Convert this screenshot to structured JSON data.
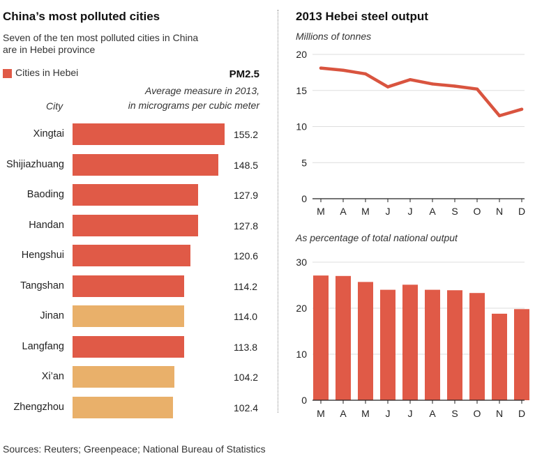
{
  "colors": {
    "hebei": "#e05a47",
    "other": "#e9b06a",
    "line": "#d9543f",
    "axis": "#222222",
    "grid": "#dddddd"
  },
  "left": {
    "title": "China’s most polluted cities",
    "subtitle_1": "Seven of the ten most polluted cities in China",
    "subtitle_2": "are in Hebei province",
    "legend_label": "Cities in Hebei",
    "metric_title": "PM2.5",
    "metric_desc_1": "Average measure in 2013,",
    "metric_desc_2": "in micrograms per cubic meter",
    "city_header": "City"
  },
  "right": {
    "title": "2013 Hebei steel output",
    "line_subtitle": "Millions of tonnes",
    "bar_subtitle": "As percentage of total national output"
  },
  "footer": {
    "sources": "Sources: Reuters; Greenpeace; National Bureau of Statistics"
  },
  "chart_data": [
    {
      "type": "bar",
      "orientation": "horizontal",
      "categories": [
        "Xingtai",
        "Shijiazhuang",
        "Baoding",
        "Handan",
        "Hengshui",
        "Tangshan",
        "Jinan",
        "Langfang",
        "Xi’an",
        "Zhengzhou"
      ],
      "values": [
        155.2,
        148.5,
        127.9,
        127.8,
        120.6,
        114.2,
        114.0,
        113.8,
        104.2,
        102.4
      ],
      "value_labels": [
        "155.2",
        "148.5",
        "127.9",
        "127.8",
        "120.6",
        "114.2",
        "114.0",
        "113.8",
        "104.2",
        "102.4"
      ],
      "in_hebei": [
        true,
        true,
        true,
        true,
        true,
        true,
        false,
        true,
        false,
        false
      ],
      "title": "China’s most polluted cities"
    },
    {
      "type": "line",
      "categories": [
        "M",
        "A",
        "M",
        "J",
        "J",
        "A",
        "S",
        "O",
        "N",
        "D"
      ],
      "values": [
        18.1,
        17.8,
        17.3,
        15.5,
        16.5,
        15.9,
        15.6,
        15.2,
        11.5,
        12.4
      ],
      "ylim": [
        0,
        20
      ],
      "yticks": [
        0,
        5,
        10,
        15,
        20
      ],
      "ylabel": "Millions of tonnes",
      "grid": true
    },
    {
      "type": "bar",
      "categories": [
        "M",
        "A",
        "M",
        "J",
        "J",
        "A",
        "S",
        "O",
        "N",
        "D"
      ],
      "values": [
        27.1,
        27.0,
        25.7,
        24.0,
        25.1,
        24.0,
        23.9,
        23.3,
        18.8,
        19.8
      ],
      "ylim": [
        0,
        30
      ],
      "yticks": [
        0,
        10,
        20,
        30
      ],
      "ylabel": "As percentage of total national output",
      "grid": true
    }
  ]
}
